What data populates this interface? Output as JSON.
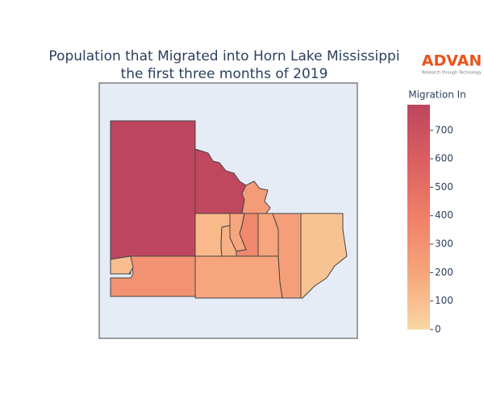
{
  "chart_data": {
    "type": "choropleth",
    "title": [
      "Population that Migrated into Horn Lake Mississippi",
      "the first three months of 2019"
    ],
    "logo": {
      "name": "ADVAN",
      "tagline": "Research through Technology"
    },
    "colorbar_title": "Migration In",
    "values": [
      790,
      780,
      250,
      300,
      100,
      200,
      120,
      150,
      200,
      350,
      200,
      230,
      80
    ],
    "zlim": [
      0,
      790
    ],
    "zticks": [
      0,
      100,
      200,
      300,
      400,
      500,
      600,
      700
    ],
    "colorscale": [
      "#fad7a3",
      "#f6a57c",
      "#ef8068",
      "#db5f60",
      "#bd465e"
    ]
  }
}
